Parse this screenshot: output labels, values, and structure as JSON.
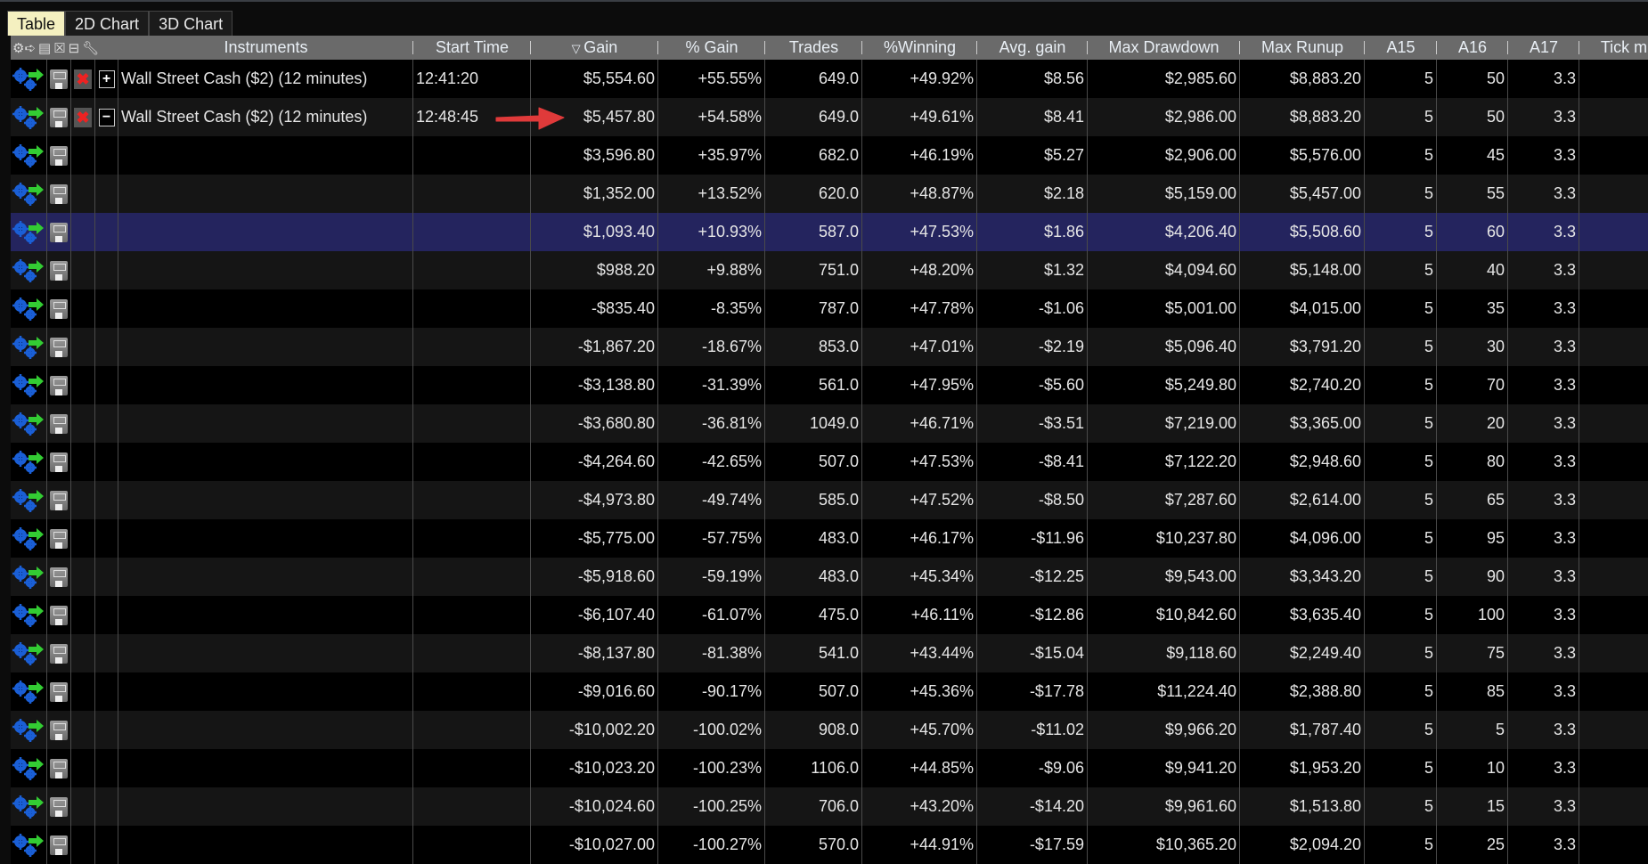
{
  "tabs": [
    {
      "label": "Table",
      "active": true
    },
    {
      "label": "2D Chart"
    },
    {
      "label": "3D Chart"
    }
  ],
  "columns": [
    "Instruments",
    "Start Time",
    "Gain",
    "% Gain",
    "Trades",
    "%Winning",
    "Avg. gain",
    "Max Drawdown",
    "Max Runup",
    "A15",
    "A16",
    "A17",
    "Tick m"
  ],
  "sort": {
    "column": "Gain",
    "direction": "descending",
    "icon": "triangle-down-icon"
  },
  "selected_row": 4,
  "colors": {
    "selected": "#24245e",
    "header": "#6a6a6a",
    "arrow": "#e03a3a",
    "active_tab": "#f4f0c0"
  },
  "rows": [
    {
      "instrument": "Wall Street Cash ($2) (12 minutes)",
      "start": "12:41:20",
      "toggle": "+",
      "gain": "$5,554.60",
      "pgain": "+55.55%",
      "trades": "649.0",
      "win": "+49.92%",
      "avg": "$8.56",
      "dd": "$2,985.60",
      "runup": "$8,883.20",
      "a15": "5",
      "a16": "50",
      "a17": "3.3"
    },
    {
      "instrument": "Wall Street Cash ($2) (12 minutes)",
      "start": "12:48:45",
      "toggle": "−",
      "gain": "$5,457.80",
      "pgain": "+54.58%",
      "trades": "649.0",
      "win": "+49.61%",
      "avg": "$8.41",
      "dd": "$2,986.00",
      "runup": "$8,883.20",
      "a15": "5",
      "a16": "50",
      "a17": "3.3"
    },
    {
      "gain": "$3,596.80",
      "pgain": "+35.97%",
      "trades": "682.0",
      "win": "+46.19%",
      "avg": "$5.27",
      "dd": "$2,906.00",
      "runup": "$5,576.00",
      "a15": "5",
      "a16": "45",
      "a17": "3.3"
    },
    {
      "gain": "$1,352.00",
      "pgain": "+13.52%",
      "trades": "620.0",
      "win": "+48.87%",
      "avg": "$2.18",
      "dd": "$5,159.00",
      "runup": "$5,457.00",
      "a15": "5",
      "a16": "55",
      "a17": "3.3"
    },
    {
      "gain": "$1,093.40",
      "pgain": "+10.93%",
      "trades": "587.0",
      "win": "+47.53%",
      "avg": "$1.86",
      "dd": "$4,206.40",
      "runup": "$5,508.60",
      "a15": "5",
      "a16": "60",
      "a17": "3.3"
    },
    {
      "gain": "$988.20",
      "pgain": "+9.88%",
      "trades": "751.0",
      "win": "+48.20%",
      "avg": "$1.32",
      "dd": "$4,094.60",
      "runup": "$5,148.00",
      "a15": "5",
      "a16": "40",
      "a17": "3.3"
    },
    {
      "gain": "-$835.40",
      "pgain": "-8.35%",
      "trades": "787.0",
      "win": "+47.78%",
      "avg": "-$1.06",
      "dd": "$5,001.00",
      "runup": "$4,015.00",
      "a15": "5",
      "a16": "35",
      "a17": "3.3"
    },
    {
      "gain": "-$1,867.20",
      "pgain": "-18.67%",
      "trades": "853.0",
      "win": "+47.01%",
      "avg": "-$2.19",
      "dd": "$5,096.40",
      "runup": "$3,791.20",
      "a15": "5",
      "a16": "30",
      "a17": "3.3"
    },
    {
      "gain": "-$3,138.80",
      "pgain": "-31.39%",
      "trades": "561.0",
      "win": "+47.95%",
      "avg": "-$5.60",
      "dd": "$5,249.80",
      "runup": "$2,740.20",
      "a15": "5",
      "a16": "70",
      "a17": "3.3"
    },
    {
      "gain": "-$3,680.80",
      "pgain": "-36.81%",
      "trades": "1049.0",
      "win": "+46.71%",
      "avg": "-$3.51",
      "dd": "$7,219.00",
      "runup": "$3,365.00",
      "a15": "5",
      "a16": "20",
      "a17": "3.3"
    },
    {
      "gain": "-$4,264.60",
      "pgain": "-42.65%",
      "trades": "507.0",
      "win": "+47.53%",
      "avg": "-$8.41",
      "dd": "$7,122.20",
      "runup": "$2,948.60",
      "a15": "5",
      "a16": "80",
      "a17": "3.3"
    },
    {
      "gain": "-$4,973.80",
      "pgain": "-49.74%",
      "trades": "585.0",
      "win": "+47.52%",
      "avg": "-$8.50",
      "dd": "$7,287.60",
      "runup": "$2,614.00",
      "a15": "5",
      "a16": "65",
      "a17": "3.3"
    },
    {
      "gain": "-$5,775.00",
      "pgain": "-57.75%",
      "trades": "483.0",
      "win": "+46.17%",
      "avg": "-$11.96",
      "dd": "$10,237.80",
      "runup": "$4,096.00",
      "a15": "5",
      "a16": "95",
      "a17": "3.3"
    },
    {
      "gain": "-$5,918.60",
      "pgain": "-59.19%",
      "trades": "483.0",
      "win": "+45.34%",
      "avg": "-$12.25",
      "dd": "$9,543.00",
      "runup": "$3,343.20",
      "a15": "5",
      "a16": "90",
      "a17": "3.3"
    },
    {
      "gain": "-$6,107.40",
      "pgain": "-61.07%",
      "trades": "475.0",
      "win": "+46.11%",
      "avg": "-$12.86",
      "dd": "$10,842.60",
      "runup": "$3,635.40",
      "a15": "5",
      "a16": "100",
      "a17": "3.3"
    },
    {
      "gain": "-$8,137.80",
      "pgain": "-81.38%",
      "trades": "541.0",
      "win": "+43.44%",
      "avg": "-$15.04",
      "dd": "$9,118.60",
      "runup": "$2,249.40",
      "a15": "5",
      "a16": "75",
      "a17": "3.3"
    },
    {
      "gain": "-$9,016.60",
      "pgain": "-90.17%",
      "trades": "507.0",
      "win": "+45.36%",
      "avg": "-$17.78",
      "dd": "$11,224.40",
      "runup": "$2,388.80",
      "a15": "5",
      "a16": "85",
      "a17": "3.3"
    },
    {
      "gain": "-$10,002.20",
      "pgain": "-100.02%",
      "trades": "908.0",
      "win": "+45.70%",
      "avg": "-$11.02",
      "dd": "$9,966.20",
      "runup": "$1,787.40",
      "a15": "5",
      "a16": "5",
      "a17": "3.3"
    },
    {
      "gain": "-$10,023.20",
      "pgain": "-100.23%",
      "trades": "1106.0",
      "win": "+44.85%",
      "avg": "-$9.06",
      "dd": "$9,941.20",
      "runup": "$1,953.20",
      "a15": "5",
      "a16": "10",
      "a17": "3.3"
    },
    {
      "gain": "-$10,024.60",
      "pgain": "-100.25%",
      "trades": "706.0",
      "win": "+43.20%",
      "avg": "-$14.20",
      "dd": "$9,961.60",
      "runup": "$1,513.80",
      "a15": "5",
      "a16": "15",
      "a17": "3.3"
    },
    {
      "gain": "-$10,027.00",
      "pgain": "-100.27%",
      "trades": "570.0",
      "win": "+44.91%",
      "avg": "-$17.59",
      "dd": "$10,365.20",
      "runup": "$2,094.20",
      "a15": "5",
      "a16": "25",
      "a17": "3.3"
    }
  ]
}
